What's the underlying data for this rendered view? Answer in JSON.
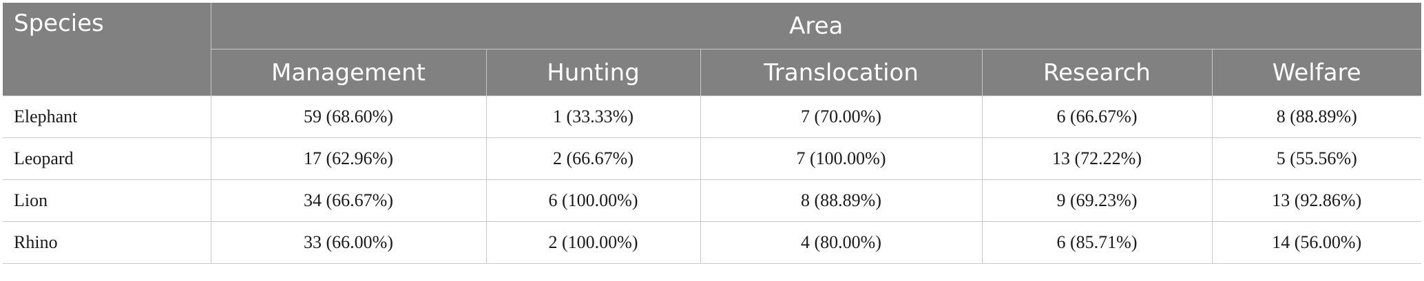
{
  "header": {
    "species_label": "Species",
    "area_label": "Area",
    "columns": [
      "Management",
      "Hunting",
      "Translocation",
      "Research",
      "Welfare"
    ]
  },
  "rows": [
    {
      "species": "Elephant",
      "values": [
        "59 (68.60%)",
        "1 (33.33%)",
        "7 (70.00%)",
        "6 (66.67%)",
        "8 (88.89%)"
      ]
    },
    {
      "species": "Leopard",
      "values": [
        "17 (62.96%)",
        "2 (66.67%)",
        "7 (100.00%)",
        "13 (72.22%)",
        "5 (55.56%)"
      ]
    },
    {
      "species": "Lion",
      "values": [
        "34 (66.67%)",
        "6 (100.00%)",
        "8 (88.89%)",
        "9 (69.23%)",
        "13 (92.86%)"
      ]
    },
    {
      "species": "Rhino",
      "values": [
        "33 (66.00%)",
        "2 (100.00%)",
        "4 (80.00%)",
        "6 (85.71%)",
        "14 (56.00%)"
      ]
    }
  ],
  "colors": {
    "header_bg": "#808180",
    "header_text": "#ffffff",
    "grid_line": "#c8c8c8",
    "body_text": "#1a1a1a"
  }
}
